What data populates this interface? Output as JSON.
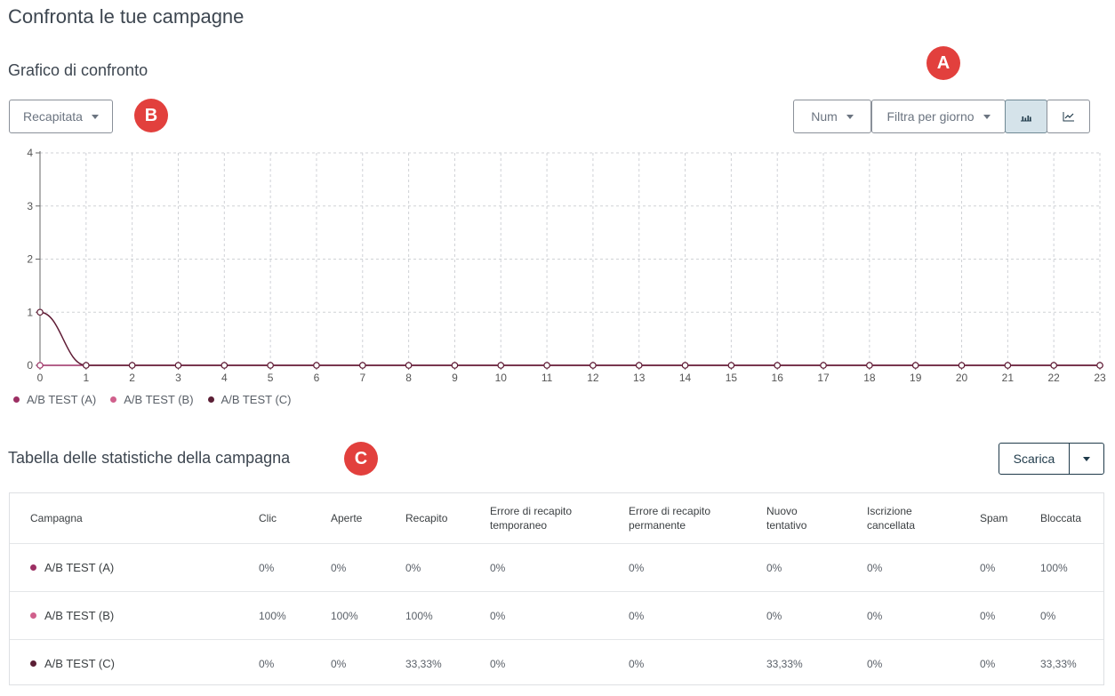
{
  "page_title": "Confronta le tue campagne",
  "chart_section": {
    "title": "Grafico di confronto",
    "metric_dropdown": "Recapitata",
    "num_dropdown": "Num",
    "filter_dropdown": "Filtra per giorno",
    "bar_view_icon": "bar-chart-icon",
    "line_view_icon": "line-chart-icon"
  },
  "markers": {
    "a": "A",
    "b": "B",
    "c": "C"
  },
  "chart_data": {
    "type": "line",
    "x": [
      0,
      1,
      2,
      3,
      4,
      5,
      6,
      7,
      8,
      9,
      10,
      11,
      12,
      13,
      14,
      15,
      16,
      17,
      18,
      19,
      20,
      21,
      22,
      23
    ],
    "ylim": [
      0,
      4
    ],
    "yticks": [
      "0",
      "1",
      "2",
      "3",
      "4"
    ],
    "xticks": [
      "0",
      "1",
      "2",
      "3",
      "4",
      "5",
      "6",
      "7",
      "8",
      "9",
      "10",
      "11",
      "12",
      "13",
      "14",
      "15",
      "16",
      "17",
      "18",
      "19",
      "20",
      "21",
      "22",
      "23"
    ],
    "grid": true,
    "legend_position": "bottom-left",
    "series": [
      {
        "name": "A/B TEST (A)",
        "color": "#9c2f63",
        "values": [
          0,
          0,
          0,
          0,
          0,
          0,
          0,
          0,
          0,
          0,
          0,
          0,
          0,
          0,
          0,
          0,
          0,
          0,
          0,
          0,
          0,
          0,
          0,
          0
        ]
      },
      {
        "name": "A/B TEST (B)",
        "color": "#d0608c",
        "values": [
          1,
          0,
          0,
          0,
          0,
          0,
          0,
          0,
          0,
          0,
          0,
          0,
          0,
          0,
          0,
          0,
          0,
          0,
          0,
          0,
          0,
          0,
          0,
          0
        ]
      },
      {
        "name": "A/B TEST (C)",
        "color": "#5b1f35",
        "values": [
          1,
          0,
          0,
          0,
          0,
          0,
          0,
          0,
          0,
          0,
          0,
          0,
          0,
          0,
          0,
          0,
          0,
          0,
          0,
          0,
          0,
          0,
          0,
          0
        ]
      }
    ]
  },
  "table_section": {
    "title": "Tabella delle statistiche della campagna",
    "download_label": "Scarica",
    "columns": [
      "Campagna",
      "Clic",
      "Aperte",
      "Recapito",
      "Errore di recapito temporaneo",
      "Errore di recapito permanente",
      "Nuovo tentativo",
      "Iscrizione cancellata",
      "Spam",
      "Bloccata"
    ],
    "rows": [
      {
        "color": "#9c2f63",
        "cells": [
          "A/B TEST (A)",
          "0%",
          "0%",
          "0%",
          "0%",
          "0%",
          "0%",
          "0%",
          "0%",
          "100%"
        ]
      },
      {
        "color": "#d0608c",
        "cells": [
          "A/B TEST (B)",
          "100%",
          "100%",
          "100%",
          "0%",
          "0%",
          "0%",
          "0%",
          "0%",
          "0%"
        ]
      },
      {
        "color": "#5b1f35",
        "cells": [
          "A/B TEST (C)",
          "0%",
          "0%",
          "33,33%",
          "0%",
          "0%",
          "33,33%",
          "0%",
          "0%",
          "33,33%"
        ]
      }
    ]
  }
}
